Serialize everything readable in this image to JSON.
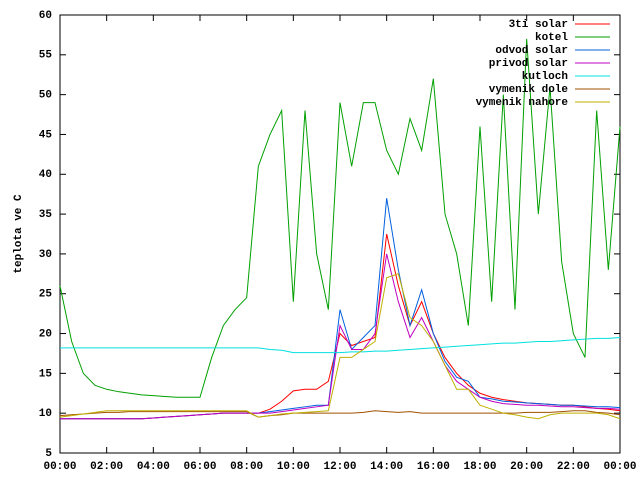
{
  "chart_data": {
    "type": "line",
    "y_label": "teplota ve C",
    "x": [
      0,
      0.5,
      1,
      1.5,
      2,
      2.5,
      3,
      3.5,
      4,
      4.5,
      5,
      5.5,
      6,
      6.5,
      7,
      7.5,
      8,
      8.5,
      9,
      9.5,
      10,
      10.5,
      11,
      11.5,
      12,
      12.5,
      13,
      13.5,
      14,
      14.5,
      15,
      15.5,
      16,
      16.5,
      17,
      17.5,
      18,
      18.5,
      19,
      19.5,
      20,
      20.5,
      21,
      21.5,
      22,
      22.5,
      23,
      23.5,
      24
    ],
    "xlim": [
      0,
      24
    ],
    "xticks": [
      {
        "value": 0,
        "label": "00:00"
      },
      {
        "value": 2,
        "label": "02:00"
      },
      {
        "value": 4,
        "label": "04:00"
      },
      {
        "value": 6,
        "label": "06:00"
      },
      {
        "value": 8,
        "label": "08:00"
      },
      {
        "value": 10,
        "label": "10:00"
      },
      {
        "value": 12,
        "label": "12:00"
      },
      {
        "value": 14,
        "label": "14:00"
      },
      {
        "value": 16,
        "label": "16:00"
      },
      {
        "value": 18,
        "label": "18:00"
      },
      {
        "value": 20,
        "label": "20:00"
      },
      {
        "value": 22,
        "label": "22:00"
      },
      {
        "value": 24,
        "label": "00:00"
      }
    ],
    "ylim": [
      5,
      60
    ],
    "yticks": [
      5,
      10,
      15,
      20,
      25,
      30,
      35,
      40,
      45,
      50,
      55,
      60
    ],
    "legend": "top-right",
    "series": [
      {
        "name": "3ti solar",
        "color": "#ff0000",
        "values": [
          9.3,
          9.3,
          9.3,
          9.3,
          9.3,
          9.3,
          9.3,
          9.3,
          9.4,
          9.5,
          9.6,
          9.7,
          9.8,
          9.9,
          10,
          10,
          10,
          10,
          10.5,
          11.5,
          12.8,
          13,
          13,
          14,
          20,
          18.5,
          19,
          19.5,
          32.5,
          26,
          21,
          24,
          20,
          17,
          15,
          13.5,
          12.5,
          12,
          11.7,
          11.5,
          11.3,
          11.2,
          11.1,
          11,
          11,
          10.8,
          10.6,
          10.5,
          10.3
        ]
      },
      {
        "name": "kotel",
        "color": "#00a000",
        "values": [
          26,
          19,
          15,
          13.5,
          13,
          12.7,
          12.5,
          12.3,
          12.2,
          12.1,
          12,
          12,
          12,
          17,
          21,
          23,
          24.5,
          41,
          45,
          48,
          24,
          48,
          30,
          23,
          49,
          41,
          49,
          49,
          43,
          40,
          47,
          43,
          52,
          35,
          30,
          21,
          46,
          24,
          50,
          23,
          57,
          35,
          51,
          29,
          20,
          17,
          48,
          28,
          46
        ]
      },
      {
        "name": "odvod solar",
        "color": "#0060e0",
        "values": [
          9.3,
          9.3,
          9.3,
          9.3,
          9.3,
          9.3,
          9.3,
          9.3,
          9.4,
          9.5,
          9.6,
          9.7,
          9.8,
          9.9,
          10,
          10,
          10,
          10,
          10.2,
          10.4,
          10.6,
          10.8,
          11,
          11,
          23,
          18,
          19.5,
          21,
          37,
          28,
          21,
          25.5,
          20,
          16.5,
          14.5,
          14,
          12,
          11.8,
          11.5,
          11.4,
          11.3,
          11.2,
          11.1,
          11,
          11,
          10.9,
          10.8,
          10.8,
          10.7
        ]
      },
      {
        "name": "privod solar",
        "color": "#c000c0",
        "values": [
          9.3,
          9.3,
          9.3,
          9.3,
          9.3,
          9.3,
          9.3,
          9.3,
          9.4,
          9.5,
          9.6,
          9.7,
          9.8,
          9.9,
          10,
          10,
          10,
          10,
          10,
          10.2,
          10.4,
          10.6,
          10.8,
          11,
          21,
          18,
          18,
          20,
          30,
          24,
          19.5,
          22,
          19,
          16,
          14,
          13,
          12,
          11.5,
          11.2,
          11.1,
          11,
          11,
          10.9,
          10.8,
          10.8,
          10.7,
          10.6,
          10.6,
          10.5
        ]
      },
      {
        "name": "kutloch",
        "color": "#00e0e0",
        "values": [
          18.2,
          18.2,
          18.2,
          18.2,
          18.2,
          18.2,
          18.2,
          18.2,
          18.2,
          18.2,
          18.2,
          18.2,
          18.2,
          18.2,
          18.2,
          18.2,
          18.2,
          18.2,
          18,
          17.9,
          17.6,
          17.6,
          17.6,
          17.6,
          17.6,
          17.7,
          17.7,
          17.8,
          17.8,
          17.9,
          18,
          18.1,
          18.2,
          18.3,
          18.4,
          18.5,
          18.6,
          18.7,
          18.8,
          18.8,
          18.9,
          19,
          19,
          19.1,
          19.2,
          19.3,
          19.4,
          19.4,
          19.5
        ]
      },
      {
        "name": "vymenik dole",
        "color": "#a05000",
        "values": [
          9.7,
          9.8,
          9.9,
          10,
          10.1,
          10.1,
          10.2,
          10.2,
          10.2,
          10.2,
          10.2,
          10.2,
          10.2,
          10.2,
          10.2,
          10.2,
          10.2,
          9.5,
          9.7,
          9.8,
          10,
          10,
          10,
          10,
          10,
          10,
          10.1,
          10.3,
          10.2,
          10.1,
          10.2,
          10,
          10,
          10,
          10,
          10,
          10,
          10,
          10,
          10,
          10.1,
          10.1,
          10.1,
          10.2,
          10.3,
          10.3,
          10.1,
          10,
          9.8
        ]
      },
      {
        "name": "vymenik nahore",
        "color": "#c0b000",
        "values": [
          9.5,
          9.7,
          9.9,
          10.1,
          10.3,
          10.3,
          10.3,
          10.3,
          10.3,
          10.3,
          10.3,
          10.3,
          10.3,
          10.3,
          10.3,
          10.3,
          10.3,
          9.5,
          9.7,
          9.9,
          10,
          10.1,
          10.2,
          10.3,
          17,
          17,
          18,
          19,
          27,
          27.5,
          22,
          21,
          19,
          16,
          13,
          13,
          11,
          10.5,
          10,
          9.8,
          9.5,
          9.3,
          9.8,
          10,
          10,
          10,
          10,
          9.8,
          9.3
        ]
      }
    ]
  }
}
